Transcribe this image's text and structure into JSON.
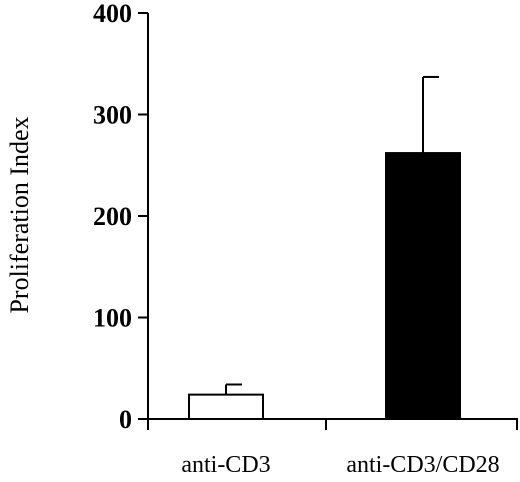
{
  "chart_data": {
    "type": "bar",
    "title": "",
    "xlabel": "",
    "ylabel": "Proliferation Index",
    "ylim": [
      0,
      400
    ],
    "yticks": [
      0,
      100,
      200,
      300,
      400
    ],
    "categories": [
      "anti-CD3",
      "anti-CD3/CD28"
    ],
    "values": [
      24,
      262
    ],
    "error_plus": [
      10,
      75
    ],
    "bar_colors": [
      "#ffffff",
      "#000000"
    ],
    "grid": false,
    "legend": "none"
  }
}
